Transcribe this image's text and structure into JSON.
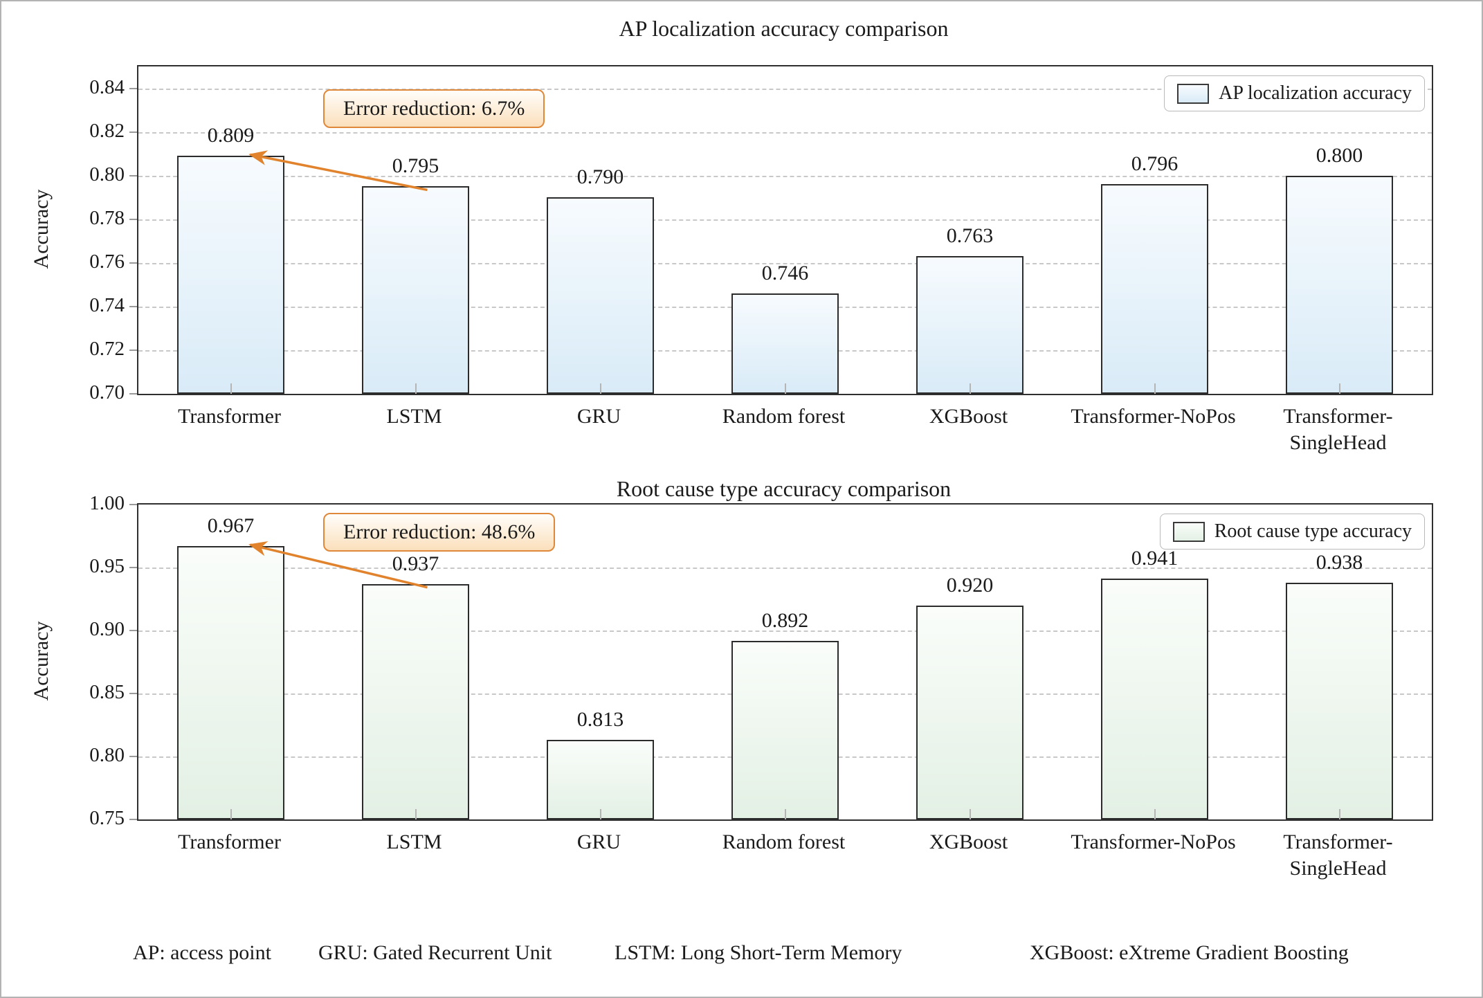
{
  "chart_data": [
    {
      "type": "bar",
      "title": "AP localization accuracy comparison",
      "ylabel": "Accuracy",
      "legend": "AP localization accuracy",
      "legend_position": "upper right",
      "annotation": "Error reduction: 6.7%",
      "categories": [
        "Transformer",
        "LSTM",
        "GRU",
        "Random forest",
        "XGBoost",
        "Transformer-NoPos",
        "Transformer-\nSingleHead"
      ],
      "values": [
        0.809,
        0.795,
        0.79,
        0.746,
        0.763,
        0.796,
        0.8
      ],
      "value_labels": [
        "0.809",
        "0.795",
        "0.790",
        "0.746",
        "0.763",
        "0.796",
        "0.800"
      ],
      "ylim": [
        0.7,
        0.85
      ],
      "yticks": [
        0.7,
        0.72,
        0.74,
        0.76,
        0.78,
        0.8,
        0.82,
        0.84
      ],
      "grid": "dashed-horizontal",
      "bar_color_top": "#f7fbfe",
      "bar_color_bottom": "#d9ebf7",
      "arrow": {
        "from_category": "LSTM",
        "to_category": "Transformer"
      }
    },
    {
      "type": "bar",
      "title": "Root cause type accuracy comparison",
      "ylabel": "Accuracy",
      "legend": "Root cause type accuracy",
      "legend_position": "upper right",
      "annotation": "Error reduction: 48.6%",
      "categories": [
        "Transformer",
        "LSTM",
        "GRU",
        "Random forest",
        "XGBoost",
        "Transformer-NoPos",
        "Transformer-\nSingleHead"
      ],
      "values": [
        0.967,
        0.937,
        0.813,
        0.892,
        0.92,
        0.941,
        0.938
      ],
      "value_labels": [
        "0.967",
        "0.937",
        "0.813",
        "0.892",
        "0.920",
        "0.941",
        "0.938"
      ],
      "ylim": [
        0.75,
        1.0
      ],
      "yticks": [
        0.75,
        0.8,
        0.85,
        0.9,
        0.95,
        1.0
      ],
      "grid": "dashed-horizontal",
      "bar_color_top": "#fafdfa",
      "bar_color_bottom": "#e3f0e4",
      "arrow": {
        "from_category": "LSTM",
        "to_category": "Transformer"
      }
    }
  ],
  "footnotes": [
    "AP: access point",
    "GRU: Gated Recurrent Unit",
    "LSTM: Long Short-Term Memory",
    "XGBoost: eXtreme Gradient Boosting"
  ],
  "colors": {
    "arrow": "#e0832c",
    "annotation_border": "#e0883a",
    "annotation_fill_bottom": "#fbdfbb",
    "grid": "#c8c8c8",
    "spine": "#2f2f2f",
    "text": "#1a1a1a"
  }
}
